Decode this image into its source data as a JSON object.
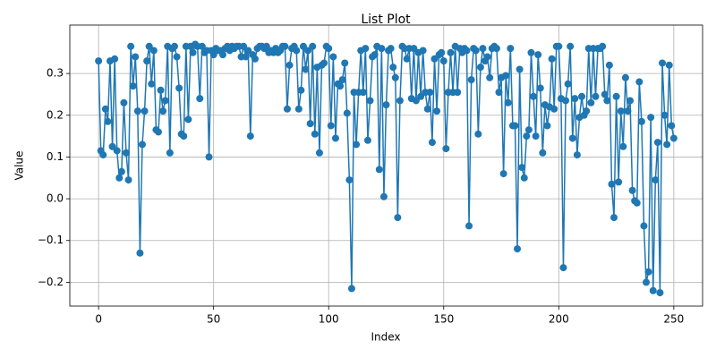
{
  "chart_data": {
    "type": "line",
    "title": "List Plot",
    "xlabel": "Index",
    "ylabel": "Value",
    "color": "#1f77b4",
    "grid": true,
    "markers": true,
    "xlim": [
      -12.5,
      262.5
    ],
    "ylim": [
      -0.257,
      0.416
    ],
    "xticks": [
      0,
      50,
      100,
      150,
      200,
      250
    ],
    "yticks": [
      {
        "value": -0.2,
        "label": "−0.2"
      },
      {
        "value": -0.1,
        "label": "−0.1"
      },
      {
        "value": 0,
        "label": "0.0"
      },
      0.1,
      0.2,
      0.3
    ],
    "x": [
      0,
      1,
      2,
      3,
      4,
      5,
      6,
      7,
      8,
      9,
      10,
      11,
      12,
      13,
      14,
      15,
      16,
      17,
      18,
      19,
      20,
      21,
      22,
      23,
      24,
      25,
      26,
      27,
      28,
      29,
      30,
      31,
      32,
      33,
      34,
      35,
      36,
      37,
      38,
      39,
      40,
      41,
      42,
      43,
      44,
      45,
      46,
      47,
      48,
      49,
      50,
      51,
      52,
      53,
      54,
      55,
      56,
      57,
      58,
      59,
      60,
      61,
      62,
      63,
      64,
      65,
      66,
      67,
      68,
      69,
      70,
      71,
      72,
      73,
      74,
      75,
      76,
      77,
      78,
      79,
      80,
      81,
      82,
      83,
      84,
      85,
      86,
      87,
      88,
      89,
      90,
      91,
      92,
      93,
      94,
      95,
      96,
      97,
      98,
      99,
      100,
      101,
      102,
      103,
      104,
      105,
      106,
      107,
      108,
      109,
      110,
      111,
      112,
      113,
      114,
      115,
      116,
      117,
      118,
      119,
      120,
      121,
      122,
      123,
      124,
      125,
      126,
      127,
      128,
      129,
      130,
      131,
      132,
      133,
      134,
      135,
      136,
      137,
      138,
      139,
      140,
      141,
      142,
      143,
      144,
      145,
      146,
      147,
      148,
      149,
      150,
      151,
      152,
      153,
      154,
      155,
      156,
      157,
      158,
      159,
      160,
      161,
      162,
      163,
      164,
      165,
      166,
      167,
      168,
      169,
      170,
      171,
      172,
      173,
      174,
      175,
      176,
      177,
      178,
      179,
      180,
      181,
      182,
      183,
      184,
      185,
      186,
      187,
      188,
      189,
      190,
      191,
      192,
      193,
      194,
      195,
      196,
      197,
      198,
      199,
      200,
      201,
      202,
      203,
      204,
      205,
      206,
      207,
      208,
      209,
      210,
      211,
      212,
      213,
      214,
      215,
      216,
      217,
      218,
      219,
      220,
      221,
      222,
      223,
      224,
      225,
      226,
      227,
      228,
      229,
      230,
      231,
      232,
      233,
      234,
      235,
      236,
      237,
      238,
      239,
      240,
      241,
      242,
      243,
      244,
      245,
      246,
      247,
      248,
      249,
      250
    ],
    "values": [
      0.33,
      0.115,
      0.105,
      0.215,
      0.185,
      0.33,
      0.125,
      0.335,
      0.115,
      0.05,
      0.065,
      0.23,
      0.11,
      0.045,
      0.365,
      0.27,
      0.34,
      0.21,
      -0.13,
      0.13,
      0.21,
      0.33,
      0.365,
      0.275,
      0.355,
      0.165,
      0.16,
      0.26,
      0.21,
      0.235,
      0.365,
      0.11,
      0.36,
      0.365,
      0.34,
      0.265,
      0.155,
      0.15,
      0.365,
      0.19,
      0.365,
      0.35,
      0.37,
      0.365,
      0.24,
      0.365,
      0.35,
      0.355,
      0.1,
      0.355,
      0.345,
      0.36,
      0.355,
      0.355,
      0.345,
      0.36,
      0.365,
      0.355,
      0.365,
      0.36,
      0.365,
      0.365,
      0.34,
      0.365,
      0.34,
      0.355,
      0.15,
      0.345,
      0.335,
      0.36,
      0.365,
      0.365,
      0.36,
      0.365,
      0.35,
      0.355,
      0.35,
      0.36,
      0.35,
      0.355,
      0.365,
      0.365,
      0.215,
      0.32,
      0.36,
      0.365,
      0.355,
      0.215,
      0.26,
      0.365,
      0.31,
      0.355,
      0.18,
      0.365,
      0.155,
      0.315,
      0.11,
      0.32,
      0.325,
      0.365,
      0.36,
      0.175,
      0.34,
      0.145,
      0.275,
      0.27,
      0.285,
      0.325,
      0.205,
      0.045,
      -0.215,
      0.255,
      0.13,
      0.255,
      0.355,
      0.255,
      0.36,
      0.14,
      0.235,
      0.34,
      0.345,
      0.365,
      0.07,
      0.36,
      0.005,
      0.225,
      0.355,
      0.36,
      0.315,
      0.29,
      -0.045,
      0.235,
      0.365,
      0.36,
      0.335,
      0.36,
      0.24,
      0.36,
      0.235,
      0.35,
      0.245,
      0.355,
      0.255,
      0.215,
      0.255,
      0.135,
      0.335,
      0.21,
      0.345,
      0.35,
      0.33,
      0.12,
      0.255,
      0.35,
      0.255,
      0.365,
      0.255,
      0.36,
      0.35,
      0.36,
      0.355,
      -0.065,
      0.285,
      0.36,
      0.355,
      0.155,
      0.315,
      0.36,
      0.33,
      0.34,
      0.29,
      0.36,
      0.365,
      0.36,
      0.255,
      0.29,
      0.06,
      0.295,
      0.23,
      0.36,
      0.175,
      0.175,
      -0.12,
      0.31,
      0.075,
      0.05,
      0.15,
      0.165,
      0.35,
      0.245,
      0.15,
      0.345,
      0.265,
      0.11,
      0.225,
      0.175,
      0.22,
      0.335,
      0.215,
      0.365,
      0.365,
      0.24,
      -0.165,
      0.235,
      0.275,
      0.365,
      0.145,
      0.24,
      0.105,
      0.195,
      0.245,
      0.2,
      0.21,
      0.36,
      0.23,
      0.36,
      0.245,
      0.36,
      0.36,
      0.365,
      0.25,
      0.235,
      0.32,
      0.035,
      -0.045,
      0.245,
      0.04,
      0.21,
      0.125,
      0.29,
      0.21,
      0.235,
      0.02,
      -0.005,
      -0.01,
      0.28,
      0.185,
      -0.065,
      -0.2,
      -0.175,
      0.195,
      -0.22,
      0.045,
      0.135,
      -0.225,
      0.325,
      0.2,
      0.13,
      0.32,
      0.175,
      0.145
    ]
  }
}
